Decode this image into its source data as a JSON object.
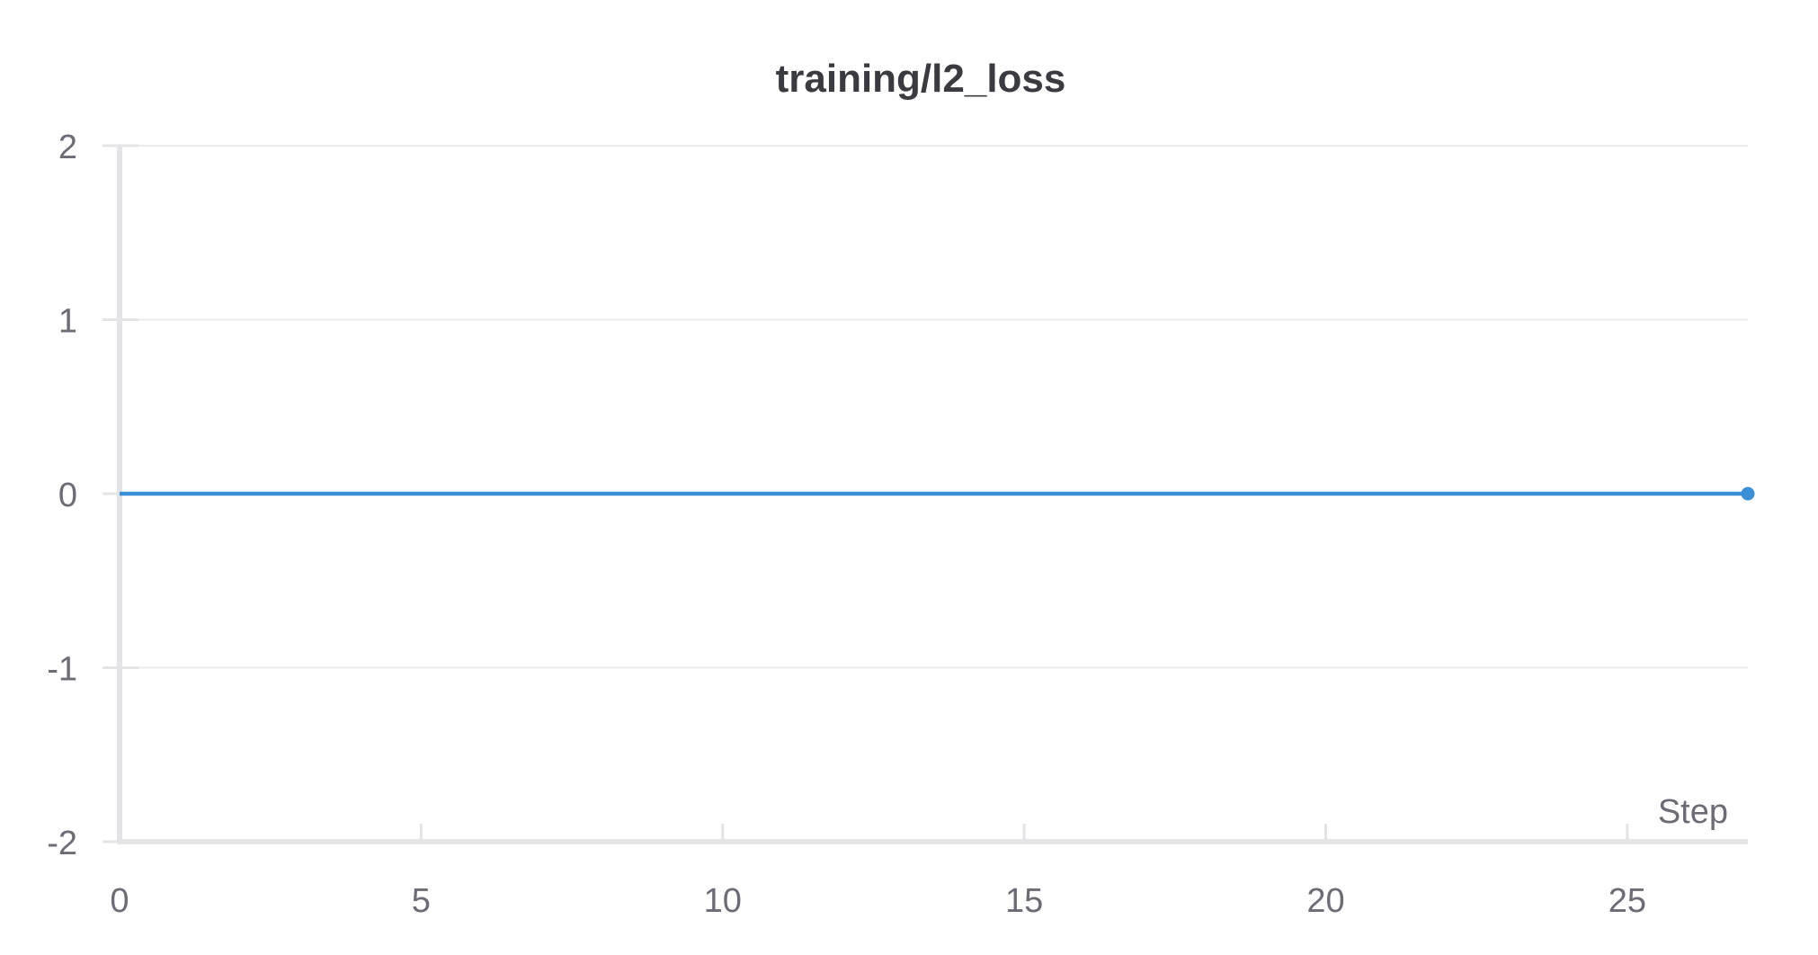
{
  "chart_data": {
    "type": "line",
    "title": "training/l2_loss",
    "xlabel": "Step",
    "ylabel": "",
    "xlim": [
      0,
      27
    ],
    "ylim": [
      -2,
      2
    ],
    "x_ticks": [
      0,
      5,
      10,
      15,
      20,
      25
    ],
    "y_ticks": [
      -2,
      -1,
      0,
      1,
      2
    ],
    "grid": true,
    "legend": "none",
    "series": [
      {
        "x": [
          0,
          27
        ],
        "y": [
          0,
          0
        ],
        "color": "#3a8fd6",
        "end_marker": true
      }
    ]
  }
}
